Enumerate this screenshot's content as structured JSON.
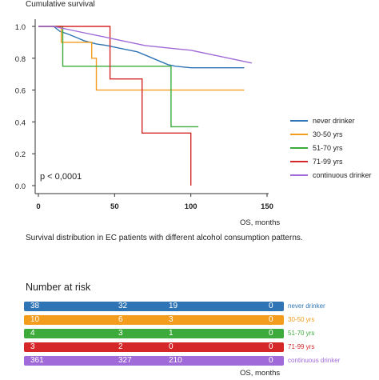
{
  "chart_data": {
    "type": "line",
    "title": "Cumulative survival",
    "xlabel": "OS, months",
    "ylabel": "",
    "xlim": [
      0,
      150
    ],
    "ylim": [
      0,
      1.0
    ],
    "xticks": [
      0,
      50,
      100,
      150
    ],
    "yticks": [
      "0.0",
      "0.2",
      "0.4",
      "0.6",
      "0.8",
      "1.0"
    ],
    "annotation": "p < 0,0001",
    "legend_position": "right",
    "series": [
      {
        "name": "never drinker",
        "color": "#2f75b5",
        "points": [
          [
            0,
            1.0
          ],
          [
            10,
            1.0
          ],
          [
            14,
            0.97
          ],
          [
            20,
            0.95
          ],
          [
            25,
            0.93
          ],
          [
            30,
            0.91
          ],
          [
            38,
            0.89
          ],
          [
            45,
            0.88
          ],
          [
            55,
            0.86
          ],
          [
            65,
            0.84
          ],
          [
            70,
            0.82
          ],
          [
            75,
            0.8
          ],
          [
            80,
            0.78
          ],
          [
            85,
            0.76
          ],
          [
            90,
            0.75
          ],
          [
            100,
            0.74
          ],
          [
            110,
            0.74
          ],
          [
            120,
            0.74
          ],
          [
            135,
            0.74
          ]
        ]
      },
      {
        "name": "30-50 yrs",
        "color": "#f39c1e",
        "points": [
          [
            0,
            1.0
          ],
          [
            15,
            1.0
          ],
          [
            15,
            0.9
          ],
          [
            35,
            0.9
          ],
          [
            35,
            0.8
          ],
          [
            38,
            0.8
          ],
          [
            38,
            0.6
          ],
          [
            135,
            0.6
          ]
        ]
      },
      {
        "name": "51-70 yrs",
        "color": "#3cab3c",
        "points": [
          [
            0,
            1.0
          ],
          [
            16,
            1.0
          ],
          [
            16,
            0.75
          ],
          [
            87,
            0.75
          ],
          [
            87,
            0.37
          ],
          [
            105,
            0.37
          ]
        ]
      },
      {
        "name": "71-99 yrs",
        "color": "#d62728",
        "points": [
          [
            0,
            1.0
          ],
          [
            47,
            1.0
          ],
          [
            47,
            0.67
          ],
          [
            68,
            0.67
          ],
          [
            68,
            0.33
          ],
          [
            100,
            0.33
          ],
          [
            100,
            0.0
          ]
        ]
      },
      {
        "name": "continuous drinker",
        "color": "#a06ad8",
        "points": [
          [
            0,
            1.0
          ],
          [
            10,
            1.0
          ],
          [
            15,
            0.99
          ],
          [
            20,
            0.98
          ],
          [
            30,
            0.96
          ],
          [
            40,
            0.94
          ],
          [
            50,
            0.92
          ],
          [
            60,
            0.9
          ],
          [
            70,
            0.88
          ],
          [
            80,
            0.87
          ],
          [
            90,
            0.86
          ],
          [
            100,
            0.85
          ],
          [
            110,
            0.83
          ],
          [
            115,
            0.82
          ],
          [
            120,
            0.81
          ],
          [
            125,
            0.8
          ],
          [
            130,
            0.79
          ],
          [
            135,
            0.78
          ],
          [
            140,
            0.77
          ]
        ]
      }
    ]
  },
  "caption": "Survival distribution in EC patients with different alcohol consumption patterns.",
  "risk_table": {
    "title": "Number at risk",
    "xlabel": "OS, months",
    "rows": [
      {
        "name": "never drinker",
        "color": "#2f75b5",
        "values": [
          "38",
          "32",
          "19",
          "0"
        ]
      },
      {
        "name": "30-50 yrs",
        "color": "#f39c1e",
        "values": [
          "10",
          "6",
          "3",
          "0"
        ]
      },
      {
        "name": "51-70 yrs",
        "color": "#3cab3c",
        "values": [
          "4",
          "3",
          "1",
          "0"
        ]
      },
      {
        "name": "71-99 yrs",
        "color": "#d62728",
        "values": [
          "3",
          "2",
          "0",
          "0"
        ]
      },
      {
        "name": "continuous drinker",
        "color": "#a06ad8",
        "values": [
          "361",
          "327",
          "210",
          "0"
        ]
      }
    ]
  }
}
